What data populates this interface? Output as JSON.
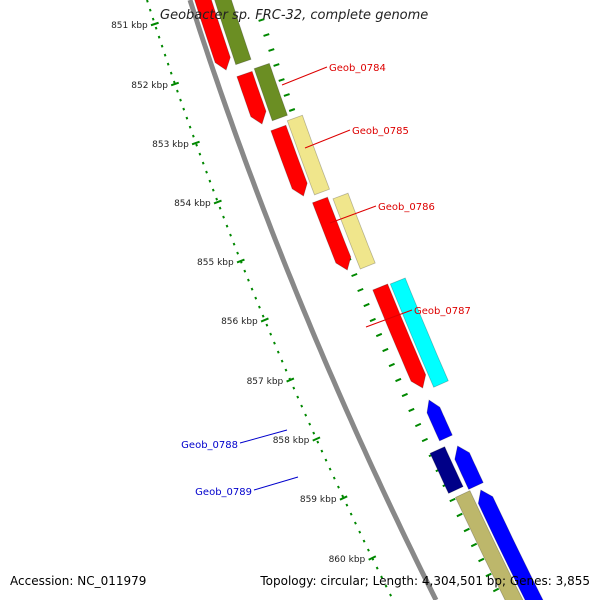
{
  "title": "Geobacter sp. FRC-32, complete genome",
  "footer": {
    "accession": "Accession: NC_011979",
    "summary": "Topology: circular; Length: 4,304,501 bp; Genes: 3,855"
  },
  "scale": {
    "unit": "kbp",
    "ticks": [
      {
        "value": 851,
        "label": "851 kbp"
      },
      {
        "value": 852,
        "label": "852 kbp"
      },
      {
        "value": 853,
        "label": "853 kbp"
      },
      {
        "value": 854,
        "label": "854 kbp"
      },
      {
        "value": 855,
        "label": "855 kbp"
      },
      {
        "value": 856,
        "label": "856 kbp"
      },
      {
        "value": 857,
        "label": "857 kbp"
      },
      {
        "value": 858,
        "label": "858 kbp"
      },
      {
        "value": 859,
        "label": "859 kbp"
      },
      {
        "value": 860,
        "label": "860 kbp"
      }
    ]
  },
  "gene_labels": [
    {
      "name": "Geob_0784",
      "color": "#dd0000"
    },
    {
      "name": "Geob_0785",
      "color": "#dd0000"
    },
    {
      "name": "Geob_0786",
      "color": "#dd0000"
    },
    {
      "name": "Geob_0787",
      "color": "#dd0000"
    },
    {
      "name": "Geob_0788",
      "color": "#0000cc"
    },
    {
      "name": "Geob_0789",
      "color": "#0000cc"
    }
  ],
  "colors": {
    "backbone": "#888888",
    "scale_ticks": "#008800",
    "forward_gene": "#ff0000",
    "reverse_gene": "#0000ff",
    "reverse_gene_dark": "#000088",
    "cog_olive": "#6b8e23",
    "cog_khaki": "#f0e68c",
    "cog_cyan": "#00ffff",
    "cog_tan": "#bdb76b",
    "forward_label": "#dd0000",
    "reverse_label": "#0000cc"
  }
}
